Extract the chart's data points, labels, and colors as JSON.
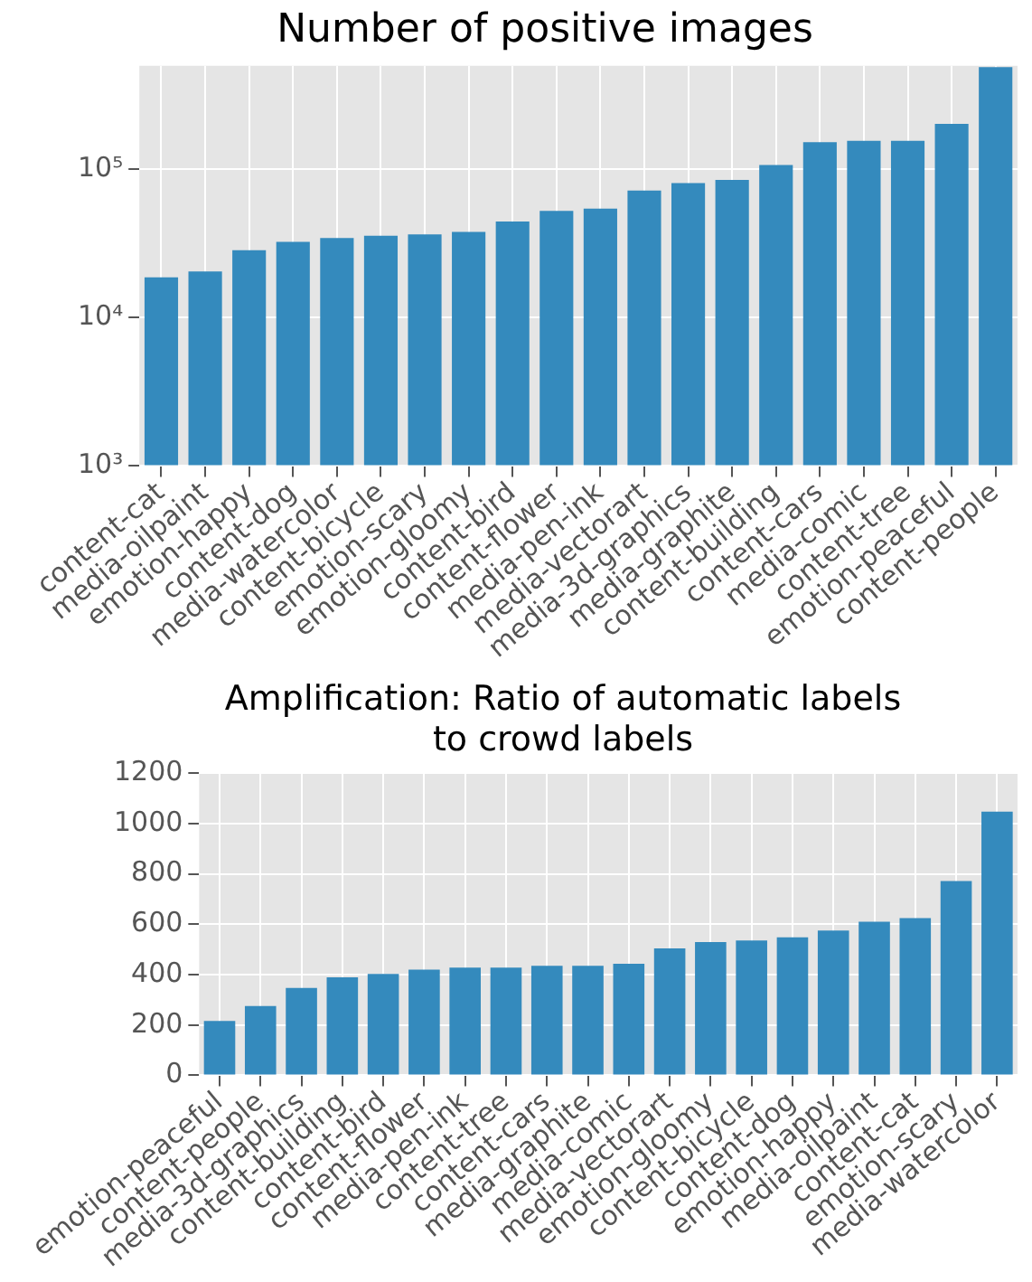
{
  "chart_data": [
    {
      "type": "bar",
      "title": "Number of positive images",
      "categories": [
        "content-cat",
        "media-oilpaint",
        "emotion-happy",
        "content-dog",
        "media-watercolor",
        "content-bicycle",
        "emotion-scary",
        "emotion-gloomy",
        "content-bird",
        "content-flower",
        "media-pen-ink",
        "media-vectorart",
        "media-3d-graphics",
        "media-graphite",
        "content-building",
        "content-cars",
        "media-comic",
        "content-tree",
        "emotion-peaceful",
        "content-people"
      ],
      "values": [
        18700,
        20500,
        28500,
        32500,
        34500,
        35700,
        36500,
        37900,
        44600,
        52600,
        54500,
        72000,
        81000,
        85000,
        107000,
        153000,
        156000,
        156000,
        203000,
        490000
      ],
      "color": "#348abd",
      "log": "y",
      "ylim": [
        1000,
        500000
      ],
      "yticks": [
        {
          "value": 1000,
          "label": "10³"
        },
        {
          "value": 10000,
          "label": "10⁴"
        },
        {
          "value": 100000,
          "label": "10⁵"
        }
      ],
      "grid": true
    },
    {
      "type": "bar",
      "title": "Amplification: Ratio of automatic labels\nto crowd labels",
      "categories": [
        "emotion-peaceful",
        "content-people",
        "media-3d-graphics",
        "content-building",
        "content-bird",
        "content-flower",
        "media-pen-ink",
        "content-tree",
        "content-cars",
        "media-graphite",
        "media-comic",
        "media-vectorart",
        "emotion-gloomy",
        "content-bicycle",
        "content-dog",
        "emotion-happy",
        "media-oilpaint",
        "content-cat",
        "emotion-scary",
        "media-watercolor"
      ],
      "values": [
        216,
        275,
        347,
        389,
        403,
        420,
        428,
        428,
        435,
        435,
        443,
        504,
        529,
        536,
        548,
        575,
        610,
        625,
        772,
        1047
      ],
      "color": "#348abd",
      "ylim": [
        0,
        1200
      ],
      "yticks": [
        0,
        200,
        400,
        600,
        800,
        1000,
        1200
      ],
      "grid": true
    }
  ]
}
